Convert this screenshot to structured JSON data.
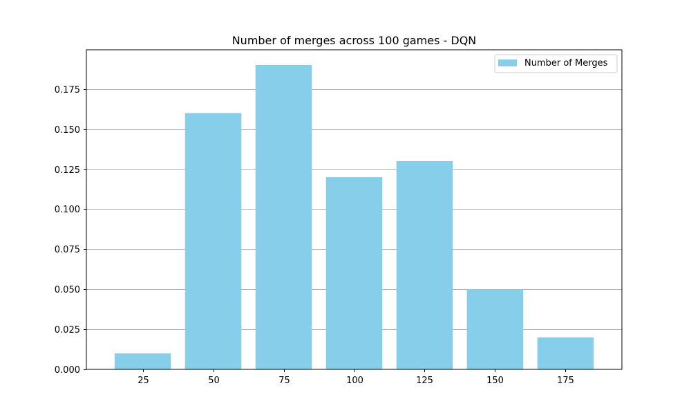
{
  "colors": {
    "bar": "#87ceeb",
    "grid": "#b0b0b0",
    "axis": "#000000"
  },
  "chart_data": {
    "type": "bar",
    "title": "Number of merges across 100 games - DQN",
    "xlabel": "",
    "ylabel": "",
    "categories": [
      "25",
      "50",
      "75",
      "100",
      "125",
      "150",
      "175"
    ],
    "x": [
      25,
      50,
      75,
      100,
      125,
      150,
      175
    ],
    "series": [
      {
        "name": "Number of Merges",
        "values": [
          0.01,
          0.16,
          0.19,
          0.12,
          0.13,
          0.05,
          0.02
        ]
      }
    ],
    "xlim": [
      5,
      195
    ],
    "ylim": [
      0,
      0.1995
    ],
    "yticks": [
      0.0,
      0.025,
      0.05,
      0.075,
      0.1,
      0.125,
      0.15,
      0.175
    ],
    "ytick_labels": [
      "0.000",
      "0.025",
      "0.050",
      "0.075",
      "0.100",
      "0.125",
      "0.150",
      "0.175"
    ],
    "bar_width": 20,
    "grid": "y",
    "legend": "top-right"
  }
}
